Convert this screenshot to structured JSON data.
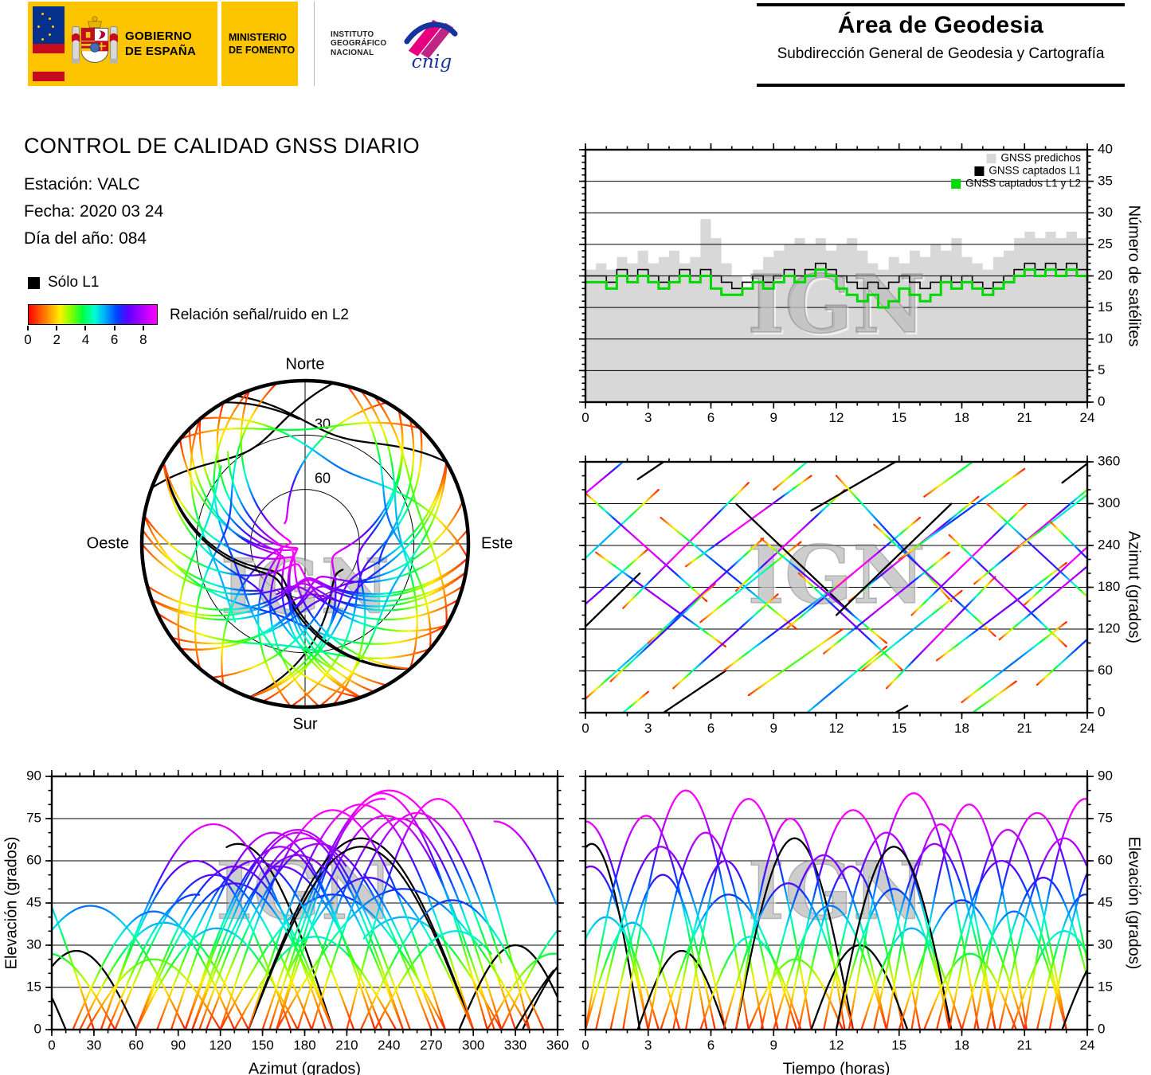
{
  "header": {
    "gobierno_line1": "GOBIERNO",
    "gobierno_line2": "DE ESPAÑA",
    "ministerio_line1": "MINISTERIO",
    "ministerio_line2": "DE FOMENTO",
    "instituto_line1": "INSTITUTO",
    "instituto_line2": "GEOGRÁFICO",
    "instituto_line3": "NACIONAL",
    "cnig_label": "cnig",
    "area_title": "Área de Geodesia",
    "area_subtitle": "Subdirección General de Geodesia y Cartografía"
  },
  "info": {
    "title": "CONTROL DE CALIDAD GNSS DIARIO",
    "station": "Estación: VALC",
    "date": "Fecha: 2020 03 24",
    "doy": "Día del año: 084"
  },
  "legend": {
    "l1_only_label": "Sólo L1",
    "colorbar_label": "Relación señal/ruido en L2",
    "colorbar_ticks": [
      0,
      2,
      4,
      6,
      8
    ],
    "colorbar_vmax": 9,
    "colormap": [
      [
        0,
        "#ff0000"
      ],
      [
        1.2,
        "#ff8000"
      ],
      [
        2.2,
        "#fff000"
      ],
      [
        3.0,
        "#80ff00"
      ],
      [
        3.8,
        "#00ff40"
      ],
      [
        4.6,
        "#00ffd0"
      ],
      [
        5.4,
        "#00a8ff"
      ],
      [
        6.2,
        "#0040ff"
      ],
      [
        7.0,
        "#6000ff"
      ],
      [
        7.8,
        "#a000ff"
      ],
      [
        9.0,
        "#ff00ff"
      ]
    ]
  },
  "watermark": "IGN",
  "satellite_passes": {
    "format": [
      "t0_h",
      "duration_h",
      "el_max_deg",
      "az_rise_deg",
      "az_set_deg",
      "snr_peak_L2",
      "l1_only"
    ],
    "color_meaning": "track color = Relación señal/ruido en L2 (colormap), black = Sólo L1",
    "passes": [
      [
        -3.0,
        6.0,
        74,
        240,
        390,
        8.5,
        0
      ],
      [
        -2.5,
        5.5,
        58,
        90,
        235,
        7.0,
        0
      ],
      [
        -2.0,
        4.6,
        66,
        65,
        200,
        7.5,
        1
      ],
      [
        -1.5,
        5.0,
        40,
        180,
        320,
        5.0,
        0
      ],
      [
        0.0,
        5.8,
        76,
        315,
        160,
        8.5,
        0
      ],
      [
        0.0,
        4.5,
        38,
        20,
        140,
        5.0,
        0
      ],
      [
        0.5,
        6.2,
        65,
        230,
        95,
        7.5,
        0
      ],
      [
        1.2,
        5.0,
        55,
        45,
        185,
        6.5,
        0
      ],
      [
        1.8,
        6.0,
        85,
        150,
        330,
        9.0,
        0
      ],
      [
        2.5,
        4.2,
        28,
        335,
        420,
        3.5,
        1
      ],
      [
        3.0,
        5.5,
        70,
        100,
        250,
        8.0,
        0
      ],
      [
        3.6,
        6.5,
        48,
        280,
        120,
        6.0,
        0
      ],
      [
        4.2,
        5.0,
        60,
        35,
        170,
        7.0,
        0
      ],
      [
        4.8,
        6.0,
        82,
        210,
        340,
        9.0,
        0
      ],
      [
        5.5,
        4.8,
        33,
        130,
        245,
        4.5,
        0
      ],
      [
        7.2,
        5.6,
        68,
        300,
        140,
        8.0,
        1
      ],
      [
        6.6,
        6.2,
        52,
        60,
        200,
        6.5,
        0
      ],
      [
        7.2,
        5.2,
        75,
        175,
        320,
        8.5,
        0
      ],
      [
        7.8,
        4.5,
        25,
        25,
        120,
        3.0,
        0
      ],
      [
        8.4,
        6.0,
        62,
        250,
        100,
        7.5,
        0
      ],
      [
        9.0,
        5.4,
        44,
        320,
        455,
        5.5,
        0
      ],
      [
        9.6,
        6.4,
        78,
        120,
        280,
        9.0,
        0
      ],
      [
        10.2,
        5.0,
        58,
        200,
        60,
        7.0,
        0
      ],
      [
        10.8,
        4.6,
        30,
        290,
        370,
        4.0,
        1
      ],
      [
        11.4,
        6.0,
        70,
        85,
        230,
        8.0,
        0
      ],
      [
        12.0,
        5.5,
        50,
        340,
        160,
        6.0,
        0
      ],
      [
        12.6,
        6.2,
        84,
        160,
        310,
        9.0,
        0
      ],
      [
        13.2,
        4.8,
        36,
        60,
        175,
        5.0,
        0
      ],
      [
        13.8,
        5.8,
        66,
        270,
        110,
        7.5,
        0
      ],
      [
        14.4,
        5.2,
        73,
        35,
        195,
        8.5,
        0
      ],
      [
        15.0,
        6.0,
        46,
        220,
        350,
        6.0,
        0
      ],
      [
        12.0,
        5.5,
        65,
        140,
        300,
        9.0,
        1
      ],
      [
        15.6,
        5.5,
        80,
        140,
        300,
        9.0,
        0
      ],
      [
        16.2,
        4.4,
        27,
        310,
        405,
        3.5,
        0
      ],
      [
        16.8,
        6.2,
        60,
        75,
        215,
        7.0,
        0
      ],
      [
        17.4,
        5.6,
        71,
        255,
        95,
        8.0,
        0
      ],
      [
        18.0,
        5.0,
        42,
        15,
        130,
        5.5,
        0
      ],
      [
        18.6,
        6.0,
        77,
        185,
        335,
        8.5,
        0
      ],
      [
        19.2,
        5.4,
        54,
        300,
        150,
        6.5,
        0
      ],
      [
        19.8,
        6.2,
        68,
        105,
        260,
        8.0,
        0
      ],
      [
        20.4,
        5.0,
        35,
        230,
        345,
        4.5,
        0
      ],
      [
        21.0,
        5.8,
        82,
        155,
        315,
        9.0,
        0
      ],
      [
        21.6,
        4.6,
        48,
        40,
        165,
        6.0,
        0
      ],
      [
        22.2,
        5.2,
        63,
        275,
        120,
        7.5,
        0
      ],
      [
        22.8,
        4.8,
        30,
        330,
        440,
        4.0,
        1
      ]
    ]
  },
  "chart_data": [
    {
      "id": "satellite-count",
      "type": "area",
      "title": "",
      "xlabel": "",
      "ylabel": "Número de satélites",
      "xlim": [
        0,
        24
      ],
      "ylim": [
        0,
        40
      ],
      "xticks": [
        0,
        3,
        6,
        9,
        12,
        15,
        18,
        21,
        24
      ],
      "yticks": [
        0,
        5,
        10,
        15,
        20,
        25,
        30,
        35,
        40
      ],
      "grid_y_step": 5,
      "ylabel_side": "right",
      "legend_position": "top-right-inside",
      "x_step_hours": 0.5,
      "legend": [
        {
          "label": "GNSS predichos",
          "color": "#d8d8d8"
        },
        {
          "label": "GNSS captados L1",
          "color": "#000000"
        },
        {
          "label": "GNSS captados L1 y L2",
          "color": "#00d800"
        }
      ],
      "series": [
        {
          "name": "GNSS predichos",
          "style": "fill",
          "color": "#d8d8d8",
          "width": 1,
          "values": [
            21,
            22,
            21,
            23,
            22,
            24,
            22,
            23,
            24,
            22,
            23,
            29,
            26,
            22,
            20,
            18,
            21,
            23,
            24,
            25,
            26,
            25,
            26,
            24,
            25,
            26,
            24,
            22,
            21,
            23,
            22,
            24,
            23,
            25,
            24,
            26,
            23,
            22,
            21,
            23,
            24,
            26,
            27,
            26,
            27,
            26,
            27,
            26,
            25
          ]
        },
        {
          "name": "GNSS captados L1",
          "style": "step",
          "color": "#000000",
          "width": 1.6,
          "values": [
            20,
            20,
            19,
            21,
            20,
            21,
            20,
            19,
            20,
            21,
            20,
            21,
            20,
            19,
            18,
            19,
            20,
            19,
            20,
            21,
            20,
            21,
            22,
            21,
            20,
            19,
            18,
            19,
            18,
            19,
            20,
            19,
            18,
            19,
            20,
            19,
            20,
            19,
            18,
            19,
            20,
            21,
            22,
            21,
            22,
            21,
            22,
            21,
            20
          ]
        },
        {
          "name": "GNSS captados L1 y L2",
          "style": "step",
          "color": "#00d800",
          "width": 3,
          "values": [
            19,
            19,
            18,
            20,
            19,
            20,
            19,
            18,
            19,
            20,
            19,
            20,
            18,
            17,
            17,
            18,
            19,
            18,
            19,
            20,
            19,
            20,
            21,
            20,
            18,
            17,
            16,
            17,
            15,
            16,
            18,
            17,
            16,
            17,
            19,
            18,
            19,
            18,
            17,
            18,
            19,
            20,
            21,
            20,
            21,
            20,
            21,
            20,
            19
          ]
        }
      ]
    },
    {
      "id": "skyplot",
      "type": "polar-tracks",
      "compass_labels": {
        "north": "Norte",
        "east": "Este",
        "south": "Sur",
        "west": "Oeste"
      },
      "elevation_rings": [
        30,
        60
      ],
      "ring_labels": [
        "30",
        "60"
      ],
      "tracks_from": "satellite_passes"
    },
    {
      "id": "azimuth-time",
      "type": "line-tracks",
      "xlabel": "",
      "ylabel": "Azimut (grados)",
      "xlim": [
        0,
        24
      ],
      "ylim": [
        0,
        360
      ],
      "xticks": [
        0,
        3,
        6,
        9,
        12,
        15,
        18,
        21,
        24
      ],
      "yticks": [
        0,
        60,
        120,
        180,
        240,
        300,
        360
      ],
      "grid_y_step": 60,
      "ylabel_side": "right",
      "tracks_from": "satellite_passes"
    },
    {
      "id": "elevation-azimuth",
      "type": "line-tracks",
      "xlabel": "Azimut (grados)",
      "ylabel": "Elevación (grados)",
      "xlim": [
        0,
        360
      ],
      "ylim": [
        0,
        90
      ],
      "xticks": [
        0,
        30,
        60,
        90,
        120,
        150,
        180,
        210,
        240,
        270,
        300,
        330,
        360
      ],
      "yticks": [
        0,
        15,
        30,
        45,
        60,
        75,
        90
      ],
      "grid_y_step": 15,
      "ylabel_side": "left",
      "tracks_from": "satellite_passes"
    },
    {
      "id": "elevation-time",
      "type": "line-tracks",
      "xlabel": "Tiempo (horas)",
      "ylabel": "Elevación (grados)",
      "xlim": [
        0,
        24
      ],
      "ylim": [
        0,
        90
      ],
      "xticks": [
        0,
        3,
        6,
        9,
        12,
        15,
        18,
        21,
        24
      ],
      "yticks": [
        0,
        15,
        30,
        45,
        60,
        75,
        90
      ],
      "grid_y_step": 15,
      "ylabel_side": "right",
      "tracks_from": "satellite_passes"
    }
  ]
}
